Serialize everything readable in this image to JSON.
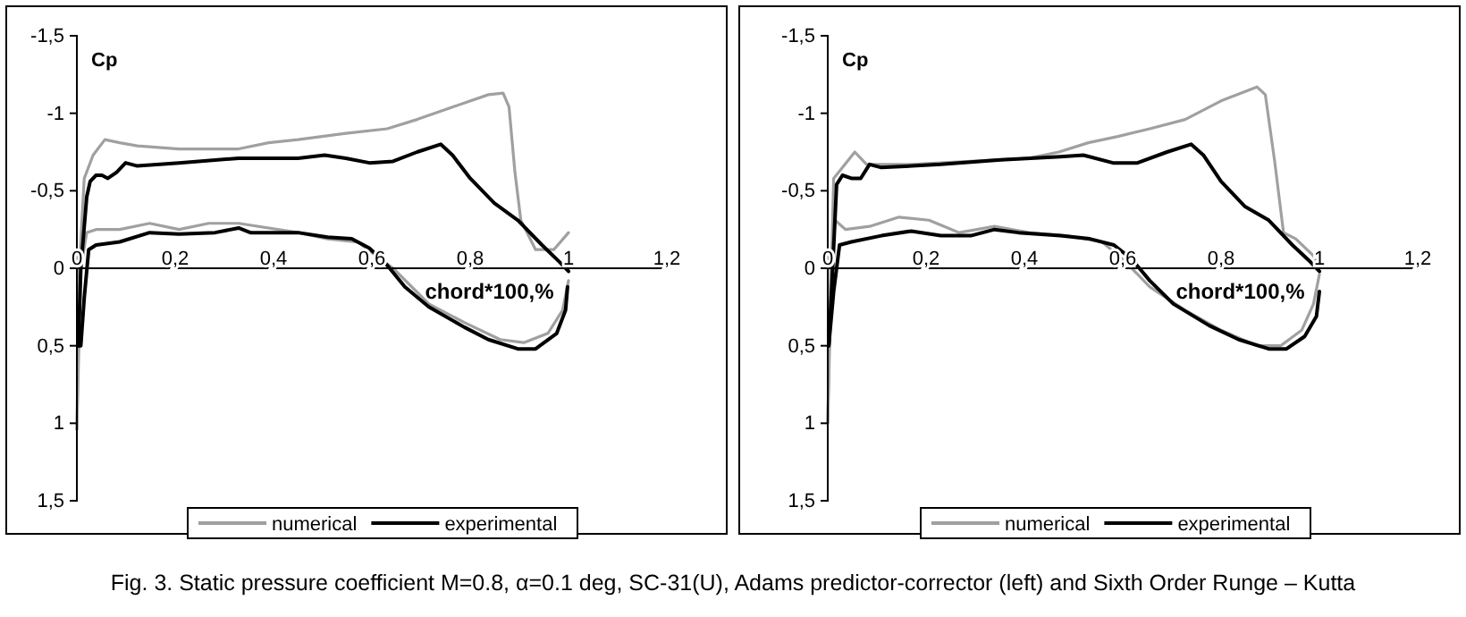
{
  "chart_data": [
    {
      "type": "line",
      "ylabel": "Cp",
      "xlabel": "chord*100,%",
      "xlim": [
        0,
        1.2
      ],
      "ylim": [
        1.5,
        -1.5
      ],
      "xticks": [
        {
          "value": 0,
          "label": "0"
        },
        {
          "value": 0.2,
          "label": "0,2"
        },
        {
          "value": 0.4,
          "label": "0,4"
        },
        {
          "value": 0.6,
          "label": "0,6"
        },
        {
          "value": 0.8,
          "label": "0,8"
        },
        {
          "value": 1,
          "label": "1"
        },
        {
          "value": 1.2,
          "label": "1,2"
        }
      ],
      "yticks": [
        {
          "value": -1.5,
          "label": "-1,5"
        },
        {
          "value": -1,
          "label": "-1"
        },
        {
          "value": -0.5,
          "label": "-0,5"
        },
        {
          "value": 0,
          "label": "0"
        },
        {
          "value": 0.5,
          "label": "0,5"
        },
        {
          "value": 1,
          "label": "1"
        },
        {
          "value": 1.5,
          "label": "1,5"
        }
      ],
      "legend": "bottom",
      "annotations": [
        "Fig. 3. Static pressure coefficient M=0.8, α=0.1 deg, SC-31(U), Adams predictor-corrector (left) and Sixth Order Runge – Kutta"
      ],
      "series": [
        {
          "name": "numerical",
          "color": "#a0a0a0",
          "x": [
            0,
            0.005,
            0.015,
            0.033,
            0.057,
            0.087,
            0.123,
            0.208,
            0.329,
            0.39,
            0.45,
            0.547,
            0.631,
            0.692,
            0.764,
            0.837,
            0.867,
            0.879,
            0.891,
            0.903,
            0.933,
            0.97,
            1
          ],
          "values": [
            1.04,
            0,
            -0.58,
            -0.73,
            -0.83,
            -0.81,
            -0.79,
            -0.77,
            -0.77,
            -0.81,
            -0.83,
            -0.87,
            -0.9,
            -0.96,
            -1.04,
            -1.12,
            -1.13,
            -1.04,
            -0.62,
            -0.31,
            -0.12,
            -0.12,
            -0.23
          ]
        },
        {
          "color": "#a0a0a0",
          "x": [
            0,
            0.008,
            0.02,
            0.039,
            0.087,
            0.148,
            0.208,
            0.268,
            0.329,
            0.45,
            0.51,
            0.571,
            0.643,
            0.716,
            0.788,
            0.861,
            0.909,
            0.958,
            0.988,
            1
          ],
          "values": [
            1.04,
            0,
            -0.23,
            -0.25,
            -0.25,
            -0.29,
            -0.25,
            -0.29,
            -0.29,
            -0.23,
            -0.19,
            -0.17,
            0,
            0.23,
            0.35,
            0.46,
            0.48,
            0.42,
            0.27,
            0.08
          ]
        },
        {
          "name": "experimental",
          "color": "#000000",
          "x": [
            0.003,
            0.008,
            0.02,
            0.027,
            0.039,
            0.051,
            0.063,
            0.081,
            0.099,
            0.123,
            0.208,
            0.329,
            0.45,
            0.504,
            0.547,
            0.595,
            0.643,
            0.692,
            0.74,
            0.764,
            0.8,
            0.849,
            0.897,
            0.946,
            0.982,
            1
          ],
          "values": [
            0.5,
            0,
            -0.46,
            -0.56,
            -0.6,
            -0.6,
            -0.58,
            -0.62,
            -0.68,
            -0.66,
            -0.68,
            -0.71,
            -0.71,
            -0.73,
            -0.71,
            -0.68,
            -0.69,
            -0.75,
            -0.8,
            -0.73,
            -0.58,
            -0.42,
            -0.31,
            -0.15,
            -0.04,
            0.02
          ]
        },
        {
          "color": "#000000",
          "x": [
            0.003,
            0.008,
            0.015,
            0.024,
            0.039,
            0.087,
            0.148,
            0.208,
            0.281,
            0.329,
            0.353,
            0.45,
            0.51,
            0.559,
            0.595,
            0.631,
            0.667,
            0.716,
            0.788,
            0.837,
            0.897,
            0.933,
            0.976,
            0.994,
            0.998
          ],
          "values": [
            0.5,
            0.5,
            0.19,
            -0.12,
            -0.15,
            -0.17,
            -0.23,
            -0.22,
            -0.23,
            -0.26,
            -0.23,
            -0.23,
            -0.2,
            -0.19,
            -0.13,
            -0.02,
            0.12,
            0.25,
            0.38,
            0.46,
            0.52,
            0.52,
            0.42,
            0.27,
            0.12
          ]
        }
      ]
    },
    {
      "type": "line",
      "ylabel": "Cp",
      "xlabel": "chord*100,%",
      "xlim": [
        0,
        1.2
      ],
      "ylim": [
        1.5,
        -1.5
      ],
      "xticks": [
        {
          "value": 0,
          "label": "0"
        },
        {
          "value": 0.2,
          "label": "0,2"
        },
        {
          "value": 0.4,
          "label": "0,4"
        },
        {
          "value": 0.6,
          "label": "0,6"
        },
        {
          "value": 0.8,
          "label": "0,8"
        },
        {
          "value": 1,
          "label": "1"
        },
        {
          "value": 1.2,
          "label": "1,2"
        }
      ],
      "yticks": [
        {
          "value": -1.5,
          "label": "-1,5"
        },
        {
          "value": -1,
          "label": "-1"
        },
        {
          "value": -0.5,
          "label": "-0,5"
        },
        {
          "value": 0,
          "label": "0"
        },
        {
          "value": 0.5,
          "label": "0,5"
        },
        {
          "value": 1,
          "label": "1"
        },
        {
          "value": 1.5,
          "label": "1,5"
        }
      ],
      "legend": "bottom",
      "series": [
        {
          "name": "numerical",
          "color": "#a0a0a0",
          "x": [
            0,
            0.012,
            0.03,
            0.055,
            0.079,
            0.17,
            0.29,
            0.41,
            0.47,
            0.53,
            0.59,
            0.655,
            0.727,
            0.8,
            0.873,
            0.89,
            0.909,
            0.927,
            0.952,
            0.988,
            1
          ],
          "values": [
            1,
            -0.58,
            -0.65,
            -0.75,
            -0.67,
            -0.67,
            -0.69,
            -0.71,
            -0.75,
            -0.81,
            -0.85,
            -0.9,
            -0.96,
            -1.08,
            -1.17,
            -1.12,
            -0.69,
            -0.23,
            -0.19,
            -0.08,
            0
          ]
        },
        {
          "color": "#a0a0a0",
          "x": [
            0,
            0.006,
            0.015,
            0.036,
            0.085,
            0.145,
            0.206,
            0.267,
            0.339,
            0.41,
            0.485,
            0.558,
            0.606,
            0.655,
            0.727,
            0.8,
            0.873,
            0.921,
            0.964,
            0.988,
            1
          ],
          "values": [
            1,
            0,
            -0.31,
            -0.25,
            -0.27,
            -0.33,
            -0.31,
            -0.23,
            -0.27,
            -0.23,
            -0.21,
            -0.17,
            -0.04,
            0.12,
            0.27,
            0.4,
            0.5,
            0.5,
            0.4,
            0.23,
            0.04
          ]
        },
        {
          "name": "experimental",
          "color": "#000000",
          "x": [
            0.002,
            0.01,
            0.018,
            0.03,
            0.048,
            0.067,
            0.085,
            0.109,
            0.23,
            0.352,
            0.473,
            0.52,
            0.58,
            0.63,
            0.69,
            0.739,
            0.764,
            0.8,
            0.848,
            0.897,
            0.945,
            0.982,
            1
          ],
          "values": [
            0.5,
            0,
            -0.54,
            -0.6,
            -0.58,
            -0.58,
            -0.67,
            -0.65,
            -0.67,
            -0.7,
            -0.72,
            -0.73,
            -0.68,
            -0.68,
            -0.75,
            -0.8,
            -0.73,
            -0.56,
            -0.4,
            -0.31,
            -0.15,
            -0.04,
            0.02
          ]
        },
        {
          "color": "#000000",
          "x": [
            0.002,
            0.012,
            0.024,
            0.048,
            0.109,
            0.17,
            0.23,
            0.291,
            0.339,
            0.388,
            0.473,
            0.533,
            0.582,
            0.618,
            0.655,
            0.703,
            0.776,
            0.836,
            0.897,
            0.933,
            0.97,
            0.994,
            1
          ],
          "values": [
            0.5,
            0.15,
            -0.15,
            -0.17,
            -0.21,
            -0.24,
            -0.21,
            -0.21,
            -0.25,
            -0.23,
            -0.21,
            -0.19,
            -0.15,
            -0.06,
            0.08,
            0.23,
            0.37,
            0.46,
            0.52,
            0.52,
            0.44,
            0.31,
            0.15
          ]
        }
      ]
    }
  ]
}
